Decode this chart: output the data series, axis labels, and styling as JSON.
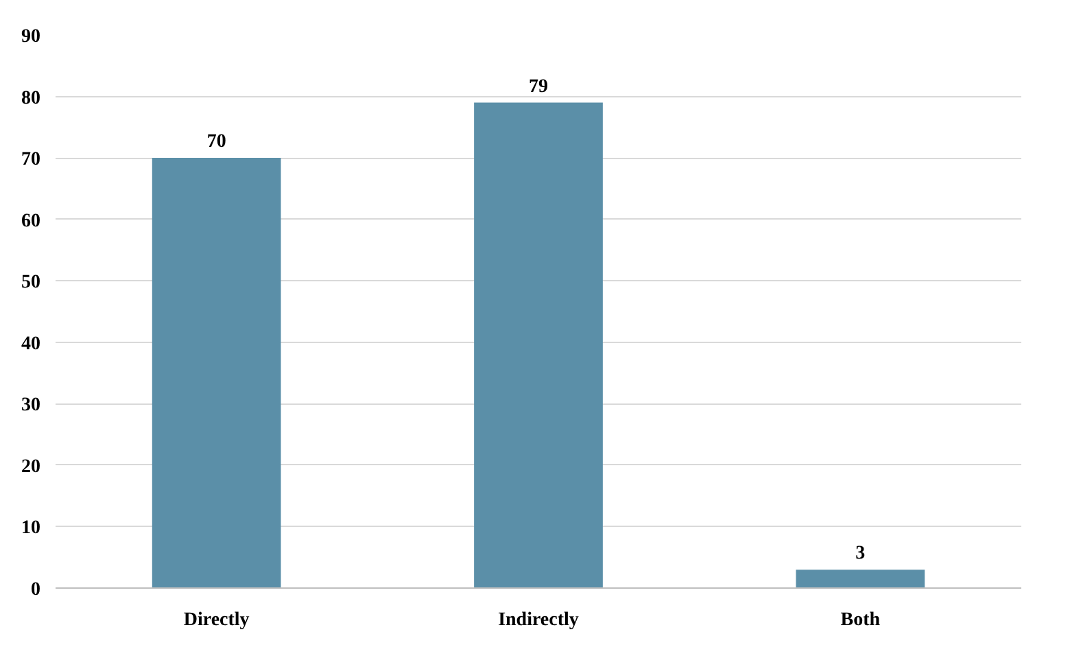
{
  "chart_data": {
    "type": "bar",
    "categories": [
      "Directly",
      "Indirectly",
      "Both"
    ],
    "values": [
      70,
      79,
      3
    ],
    "color": "#5b8fa8",
    "ylim": [
      0,
      90
    ],
    "yticks": [
      0,
      10,
      20,
      30,
      40,
      50,
      60,
      70,
      80,
      90
    ],
    "grid": "y",
    "data_labels": true
  }
}
